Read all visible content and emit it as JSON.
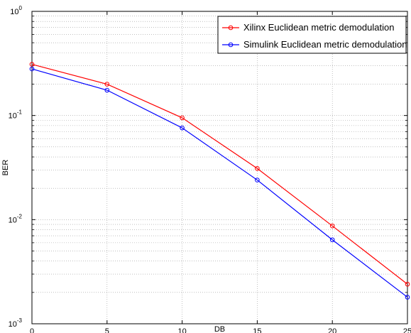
{
  "chart_data": {
    "type": "line",
    "title": "",
    "xlabel": "DB",
    "ylabel": "BER",
    "x": [
      0,
      5,
      10,
      15,
      20,
      25
    ],
    "xlim": [
      0,
      25
    ],
    "ylim": [
      0.001,
      1
    ],
    "yscale": "log",
    "grid": true,
    "legend_position": "top-right",
    "x_ticks": [
      "0",
      "5",
      "10",
      "15",
      "20",
      "25"
    ],
    "y_ticks": [
      {
        "base": "10",
        "exp": "0",
        "value": 1
      },
      {
        "base": "10",
        "exp": "-1",
        "value": 0.1
      },
      {
        "base": "10",
        "exp": "-2",
        "value": 0.01
      },
      {
        "base": "10",
        "exp": "-3",
        "value": 0.001
      }
    ],
    "series": [
      {
        "name": "Xilinx Euclidean metric demodulation",
        "color": "#ff0000",
        "marker": "circle",
        "values": [
          0.31,
          0.2,
          0.095,
          0.031,
          0.0087,
          0.0024
        ]
      },
      {
        "name": "Simulink Euclidean metric demodulation",
        "color": "#0000ff",
        "marker": "circle",
        "values": [
          0.28,
          0.175,
          0.076,
          0.024,
          0.0064,
          0.0018
        ]
      }
    ]
  }
}
